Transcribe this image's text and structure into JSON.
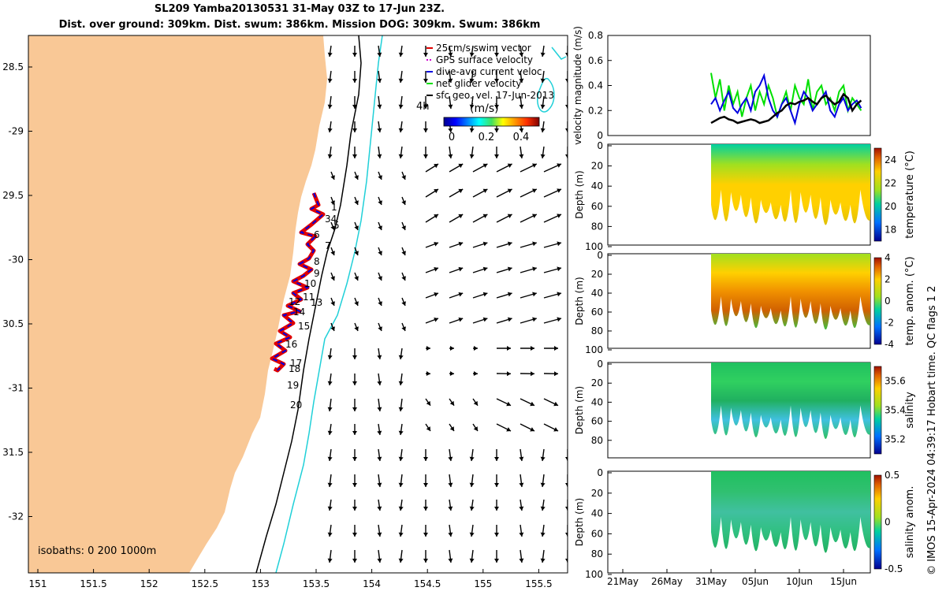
{
  "header": {
    "title_line1": "SL209 Yamba20130531 31-May 03Z to 17-Jun 23Z.",
    "title_line2": "Dist. over ground: 309km. Dist. swum: 386km. Mission DOG: 309km. Swum: 386km"
  },
  "map": {
    "lon_ticks": [
      "151",
      "151.5",
      "152",
      "152.5",
      "153",
      "153.5",
      "154",
      "154.5",
      "155",
      "155.5"
    ],
    "lat_ticks": [
      "28.5",
      "-29",
      "29.5",
      "-30",
      "30.5",
      "-31",
      "31.5",
      "-32"
    ],
    "legend": [
      {
        "label": "25cm/s swim vector",
        "color": "#e00000"
      },
      {
        "label": "GPS surface velocity",
        "color": "#d000d0"
      },
      {
        "label": "dive-avg current veloc.",
        "color": "#0000e0"
      },
      {
        "label": "net glider velocity",
        "color": "#00e000"
      },
      {
        "label": "sfc geo. vel. 17-Jun-2013",
        "color": "#000000"
      }
    ],
    "colorbar": {
      "label": "(m/s)",
      "ticks": [
        "0",
        "0.2",
        "0.4"
      ],
      "note": "4h"
    },
    "isobaths_label": "isobaths: 0   200  1000m",
    "track_labels": [
      "1",
      "34",
      "5",
      "6",
      "7",
      "8",
      "9",
      "10",
      "11",
      "12",
      "13",
      "14",
      "15",
      "16",
      "17",
      "18",
      "19",
      "20"
    ],
    "colors": {
      "land": "#f9c896",
      "isobath200": "#000000",
      "isobath1000": "#20d0d8"
    }
  },
  "chart_data": [
    {
      "type": "line",
      "title": "",
      "ylabel": "velocity magnitude (m/s)",
      "ylim": [
        0,
        0.8
      ],
      "yticks": [
        "0",
        "0.2",
        "0.4",
        "0.6",
        "0.8"
      ],
      "x": [
        31.0,
        31.5,
        32.0,
        32.5,
        33.0,
        33.5,
        34.0,
        34.5,
        35.0,
        35.5,
        36.0,
        36.5,
        37.0,
        37.5,
        38.0,
        38.5,
        39.0,
        39.5,
        40.0,
        40.5,
        41.0,
        41.5,
        42.0,
        42.5,
        43.0,
        43.5,
        44.0,
        44.5,
        45.0,
        45.5,
        46.0,
        46.5,
        47.0,
        47.5,
        48.0
      ],
      "series": [
        {
          "name": "net glider velocity",
          "color": "#00e000",
          "values": [
            0.5,
            0.3,
            0.45,
            0.2,
            0.4,
            0.25,
            0.35,
            0.15,
            0.3,
            0.4,
            0.2,
            0.35,
            0.25,
            0.4,
            0.3,
            0.15,
            0.25,
            0.35,
            0.2,
            0.4,
            0.3,
            0.25,
            0.45,
            0.2,
            0.35,
            0.4,
            0.25,
            0.3,
            0.2,
            0.35,
            0.4,
            0.2,
            0.3,
            0.25,
            0.2
          ]
        },
        {
          "name": "dive-avg current veloc.",
          "color": "#0000e0",
          "values": [
            0.25,
            0.3,
            0.2,
            0.28,
            0.35,
            0.22,
            0.18,
            0.25,
            0.3,
            0.2,
            0.35,
            0.4,
            0.48,
            0.3,
            0.2,
            0.15,
            0.25,
            0.3,
            0.2,
            0.1,
            0.25,
            0.35,
            0.3,
            0.2,
            0.25,
            0.3,
            0.35,
            0.2,
            0.15,
            0.25,
            0.3,
            0.2,
            0.25,
            0.28,
            0.22
          ]
        },
        {
          "name": "sfc geo. vel.",
          "color": "#000000",
          "values": [
            0.1,
            0.12,
            0.14,
            0.15,
            0.13,
            0.12,
            0.1,
            0.11,
            0.12,
            0.13,
            0.12,
            0.1,
            0.11,
            0.12,
            0.15,
            0.18,
            0.2,
            0.24,
            0.26,
            0.25,
            0.27,
            0.28,
            0.3,
            0.27,
            0.25,
            0.3,
            0.32,
            0.28,
            0.25,
            0.27,
            0.33,
            0.3,
            0.2,
            0.25,
            0.28
          ]
        }
      ]
    },
    {
      "type": "heatmap",
      "ylabel": "Depth (m)",
      "cblabel": "temperature (°C)",
      "yticks": [
        "0",
        "20",
        "40",
        "60",
        "80",
        "100"
      ],
      "cbticks": [
        "24",
        "22",
        "20",
        "18"
      ],
      "cbrange": [
        17,
        25
      ]
    },
    {
      "type": "heatmap",
      "ylabel": "Depth (m)",
      "cblabel": "temp. anom. (°C)",
      "yticks": [
        "0",
        "20",
        "40",
        "60",
        "80",
        "100"
      ],
      "cbticks": [
        "4",
        "2",
        "0",
        "-2",
        "-4"
      ],
      "cbrange": [
        -4,
        4
      ]
    },
    {
      "type": "heatmap",
      "ylabel": "Depth (m)",
      "cblabel": "salinity",
      "yticks": [
        "0",
        "20",
        "40",
        "60",
        "80"
      ],
      "cbticks": [
        "35.6",
        "35.4",
        "35.2"
      ],
      "cbrange": [
        35.1,
        35.7
      ]
    },
    {
      "type": "heatmap",
      "ylabel": "Depth (m)",
      "cblabel": "salinity anom.",
      "yticks": [
        "0",
        "20",
        "40",
        "60",
        "80",
        "100"
      ],
      "cbticks": [
        "0.5",
        "0",
        "-0.5"
      ],
      "cbrange": [
        -0.5,
        0.5
      ],
      "xticks": [
        "21May",
        "26May",
        "31May",
        "05Jun",
        "10Jun",
        "15Jun"
      ]
    }
  ],
  "footer_text": "© IMOS 15-Apr-2024 04:39:17 Hobart time. QC flags 1  2"
}
